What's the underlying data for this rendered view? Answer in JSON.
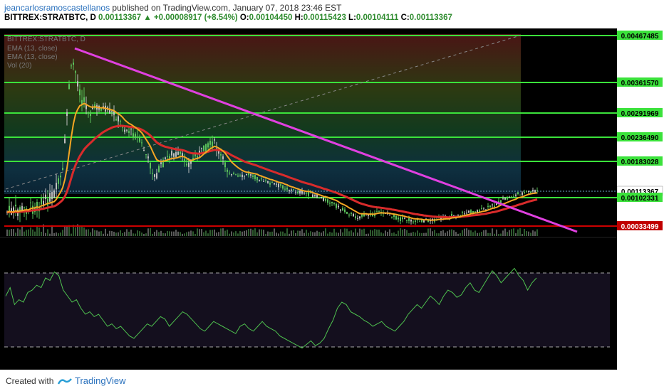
{
  "header": {
    "author": "jeancarlosramoscastellanos",
    "published_text": "published on TradingView.com, January 07, 2018 23:46 EST",
    "symbol": "BITTREX:STRATBTC, D",
    "last": "0.00113367",
    "change_arrow": "▲",
    "change": "+0.00008917 (+8.54%)",
    "o_label": "O:",
    "o_value": "0.00104450",
    "h_label": "H:",
    "h_value": "0.00115423",
    "l_label": "L:",
    "l_value": "0.00104111",
    "c_label": "C:",
    "c_value": "0.00113367"
  },
  "indicators": {
    "legend_line1": "BITTREX:STRATBTC, D",
    "ema1": "EMA (13, close)",
    "ema2": "EMA (13, close)",
    "vol": "Vol (20)"
  },
  "footer": {
    "created_with": "Created with",
    "brand": "TradingView"
  },
  "colors": {
    "level_line": "#3be23b",
    "support_line": "#cc0000",
    "trendline": "#e040e0",
    "ema_fast": "#f5a623",
    "ema_slow": "#d92b2b",
    "rsi": "#4fc24f",
    "up_candle": "#5cc35c",
    "down_candle": "#c0c0c0"
  },
  "chart_data": {
    "type": "candlestick",
    "symbol": "BITTREX:STRATBTC",
    "interval": "D",
    "price_levels": [
      {
        "value": 0.00467485,
        "label": "0.00467485",
        "style": "green"
      },
      {
        "value": 0.0036157,
        "label": "0.00361570",
        "style": "green"
      },
      {
        "value": 0.00291969,
        "label": "0.00291969",
        "style": "green"
      },
      {
        "value": 0.0023649,
        "label": "0.00236490",
        "style": "green"
      },
      {
        "value": 0.00183028,
        "label": "0.00183028",
        "style": "green"
      },
      {
        "value": 0.00113367,
        "label": "0.00113367",
        "style": "last"
      },
      {
        "value": 0.00102331,
        "label": "0.00102331",
        "style": "green"
      },
      {
        "value": 0.00033499,
        "label": "0.00033499",
        "style": "red"
      }
    ],
    "trendline": {
      "start": 0.0044,
      "end": 0.0003
    },
    "rsi": [
      55,
      62,
      48,
      52,
      50,
      58,
      60,
      64,
      62,
      70,
      68,
      75,
      72,
      60,
      55,
      50,
      52,
      45,
      40,
      42,
      38,
      40,
      35,
      30,
      32,
      28,
      30,
      26,
      22,
      20,
      24,
      28,
      32,
      30,
      34,
      38,
      36,
      30,
      34,
      38,
      42,
      40,
      36,
      32,
      28,
      26,
      30,
      34,
      32,
      30,
      28,
      26,
      24,
      30,
      32,
      28,
      26,
      30,
      34,
      30,
      28,
      26,
      22,
      20,
      18,
      16,
      14,
      12,
      15,
      18,
      14,
      16,
      20,
      28,
      35,
      45,
      50,
      48,
      42,
      40,
      38,
      35,
      33,
      30,
      32,
      34,
      30,
      28,
      26,
      30,
      34,
      40,
      44,
      48,
      45,
      50,
      55,
      52,
      48,
      55,
      60,
      58,
      54,
      56,
      62,
      66,
      60,
      58,
      64,
      70,
      76,
      72,
      66,
      70,
      74,
      78,
      72,
      68,
      60,
      66,
      70
    ]
  }
}
